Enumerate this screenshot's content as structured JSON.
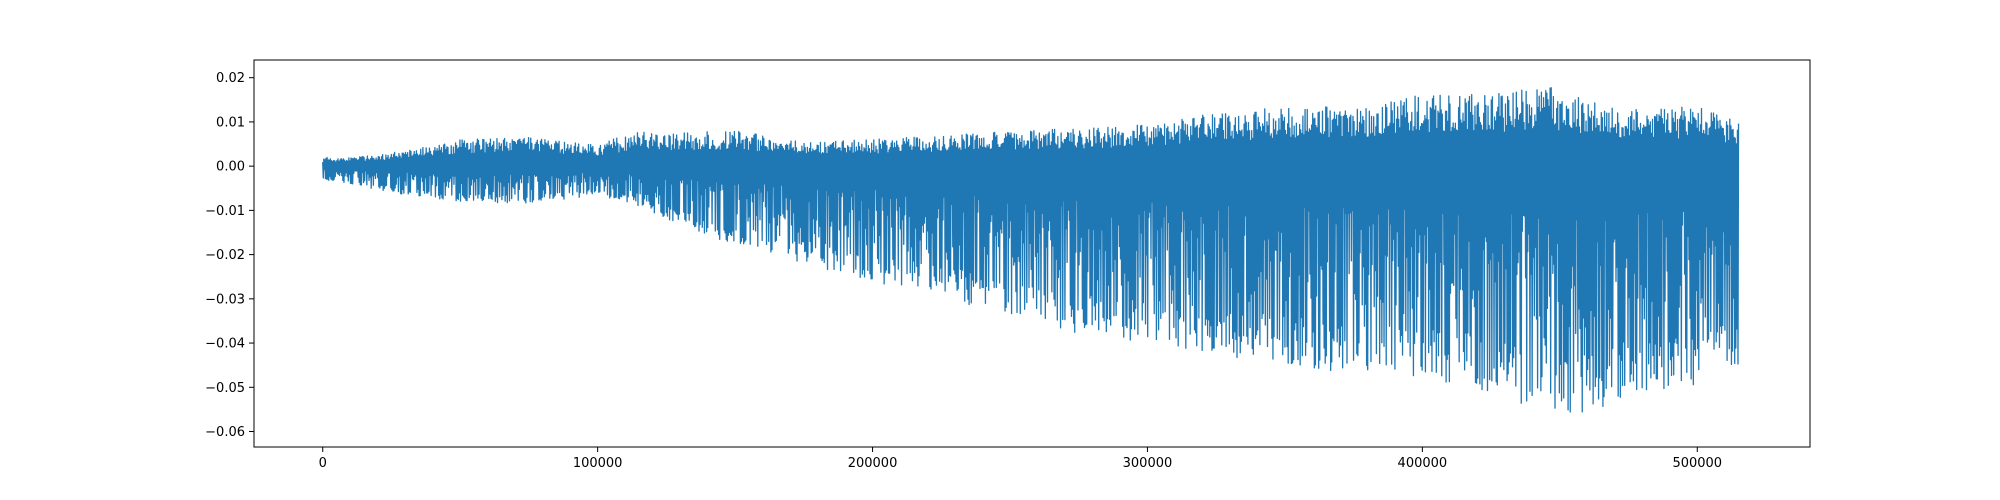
{
  "chart_data": {
    "type": "line",
    "title": "",
    "xlabel": "",
    "ylabel": "",
    "xlim": [
      -25000,
      541000
    ],
    "ylim": [
      -0.0635,
      0.024
    ],
    "x_ticks": [
      0,
      100000,
      200000,
      300000,
      400000,
      500000
    ],
    "x_tick_labels": [
      "0",
      "100000",
      "200000",
      "300000",
      "400000",
      "500000"
    ],
    "y_ticks": [
      0.02,
      0.01,
      0.0,
      -0.01,
      -0.02,
      -0.03,
      -0.04,
      -0.05,
      -0.06
    ],
    "y_tick_labels": [
      "0.02",
      "0.01",
      "0.00",
      "−0.01",
      "−0.02",
      "−0.03",
      "−0.04",
      "−0.05",
      "−0.06"
    ],
    "grid": false,
    "legend": "none",
    "series": [
      {
        "color": "#1f77b4",
        "x_range": [
          0,
          515000
        ],
        "envelope": {
          "x": [
            0,
            10000,
            25000,
            50000,
            75000,
            100000,
            115000,
            125000,
            150000,
            175000,
            200000,
            225000,
            250000,
            275000,
            300000,
            325000,
            350000,
            375000,
            400000,
            425000,
            445000,
            460000,
            475000,
            500000,
            515000
          ],
          "upper": [
            0.002,
            0.002,
            0.003,
            0.006,
            0.0065,
            0.005,
            0.008,
            0.0075,
            0.008,
            0.0055,
            0.006,
            0.007,
            0.008,
            0.0085,
            0.0095,
            0.012,
            0.0135,
            0.0135,
            0.0165,
            0.0165,
            0.0185,
            0.0155,
            0.013,
            0.0135,
            0.01
          ],
          "lower": [
            -0.003,
            -0.004,
            -0.006,
            -0.008,
            -0.0085,
            -0.0065,
            -0.009,
            -0.012,
            -0.018,
            -0.022,
            -0.026,
            -0.03,
            -0.034,
            -0.038,
            -0.04,
            -0.043,
            -0.045,
            -0.047,
            -0.048,
            -0.051,
            -0.058,
            -0.056,
            -0.052,
            -0.05,
            -0.046
          ]
        }
      }
    ]
  }
}
